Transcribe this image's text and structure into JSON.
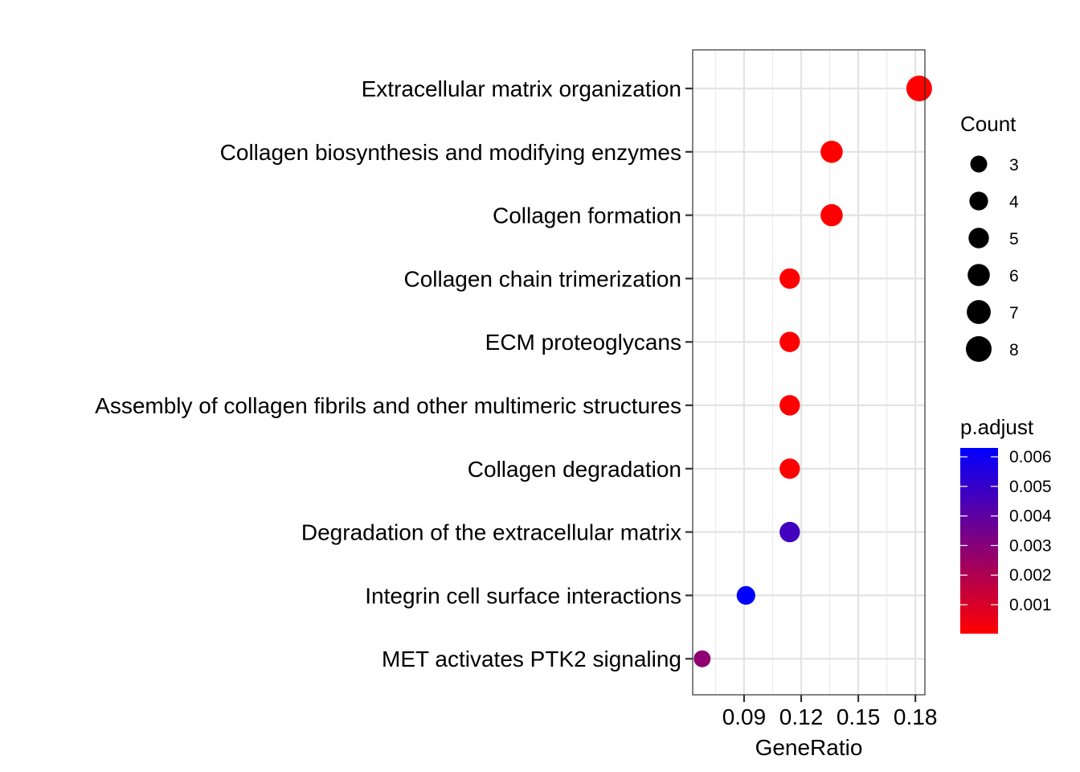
{
  "chart_data": {
    "type": "scatter",
    "title": "",
    "xlabel": "GeneRatio",
    "ylabel": "",
    "categories": [
      "Extracellular matrix organization",
      "Collagen biosynthesis and modifying enzymes",
      "Collagen formation",
      "Collagen chain trimerization",
      "ECM proteoglycans",
      "Assembly of collagen fibrils and other multimeric structures",
      "Collagen degradation",
      "Degradation of the extracellular matrix",
      "Integrin cell surface interactions",
      "MET activates PTK2 signaling"
    ],
    "points": [
      {
        "term": "Extracellular matrix organization",
        "gene_ratio": 0.182,
        "count": 8,
        "p_adjust": 2e-05
      },
      {
        "term": "Collagen biosynthesis and modifying enzymes",
        "gene_ratio": 0.136,
        "count": 6,
        "p_adjust": 3e-05
      },
      {
        "term": "Collagen formation",
        "gene_ratio": 0.136,
        "count": 6,
        "p_adjust": 4e-05
      },
      {
        "term": "Collagen chain trimerization",
        "gene_ratio": 0.114,
        "count": 5,
        "p_adjust": 3e-05
      },
      {
        "term": "ECM proteoglycans",
        "gene_ratio": 0.114,
        "count": 5,
        "p_adjust": 5e-05
      },
      {
        "term": "Assembly of collagen fibrils and other multimeric structures",
        "gene_ratio": 0.114,
        "count": 5,
        "p_adjust": 6e-05
      },
      {
        "term": "Collagen degradation",
        "gene_ratio": 0.114,
        "count": 5,
        "p_adjust": 8e-05
      },
      {
        "term": "Degradation of the extracellular matrix",
        "gene_ratio": 0.114,
        "count": 5,
        "p_adjust": 0.0047
      },
      {
        "term": "Integrin cell surface interactions",
        "gene_ratio": 0.091,
        "count": 4,
        "p_adjust": 0.0063
      },
      {
        "term": "MET activates PTK2 signaling",
        "gene_ratio": 0.068,
        "count": 3,
        "p_adjust": 0.0028
      }
    ],
    "xlim": [
      0.063,
      0.185
    ],
    "xticks": [
      0.09,
      0.12,
      0.15,
      0.18
    ],
    "xtick_labels": [
      "0.09",
      "0.12",
      "0.15",
      "0.18"
    ],
    "grid": true,
    "legend_size": {
      "title": "Count",
      "values": [
        3,
        4,
        5,
        6,
        7,
        8
      ],
      "labels": [
        "3",
        "4",
        "5",
        "6",
        "7",
        "8"
      ]
    },
    "legend_color": {
      "title": "p.adjust",
      "range": [
        2e-05,
        0.0063
      ],
      "ticks": [
        0.006,
        0.005,
        0.004,
        0.003,
        0.002,
        0.001
      ],
      "tick_labels": [
        "0.006",
        "0.005",
        "0.004",
        "0.003",
        "0.002",
        "0.001"
      ],
      "low_color": "#ff0000",
      "high_color": "#0000ff"
    },
    "legend_placement": "right"
  }
}
